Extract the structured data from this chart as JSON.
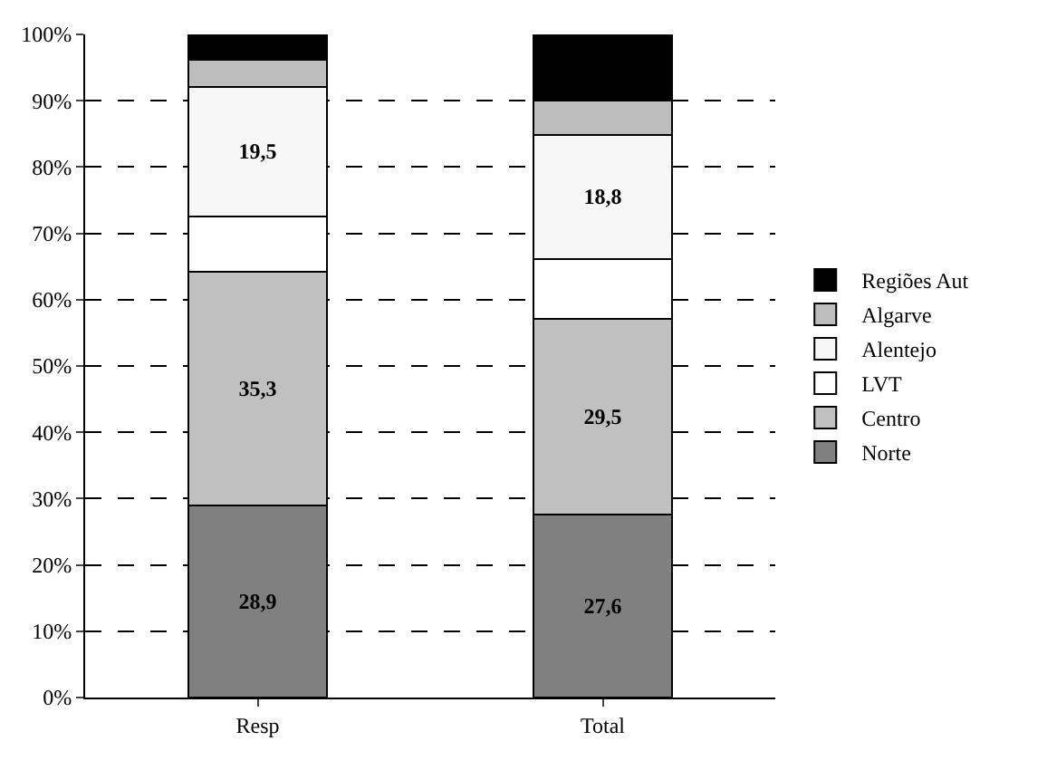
{
  "chart_data": {
    "type": "bar",
    "stacked": true,
    "categories": [
      "Resp",
      "Total"
    ],
    "series": [
      {
        "name": "Norte",
        "color": "#808080",
        "values": [
          28.9,
          27.6
        ],
        "value_labels": [
          "28,9",
          "27,6"
        ]
      },
      {
        "name": "Centro",
        "color": "#c0c0c0",
        "values": [
          35.3,
          29.5
        ],
        "value_labels": [
          "35,3",
          "29,5"
        ]
      },
      {
        "name": "LVT",
        "color": "#ffffff",
        "values": [
          8.4,
          9.0
        ],
        "value_labels": [
          null,
          null
        ]
      },
      {
        "name": "Alentejo",
        "color": "#f7f7f7",
        "values": [
          19.5,
          18.8
        ],
        "value_labels": [
          "19,5",
          "18,8"
        ]
      },
      {
        "name": "Algarve",
        "color": "#bdbdbd",
        "values": [
          4.1,
          5.1
        ],
        "value_labels": [
          null,
          null
        ]
      },
      {
        "name": "Regiões Aut",
        "color": "#000000",
        "values": [
          3.8,
          10.0
        ],
        "value_labels": [
          null,
          null
        ]
      }
    ],
    "ylim": [
      0,
      100
    ],
    "yticks": [
      {
        "value": 0,
        "label": "0%"
      },
      {
        "value": 10,
        "label": "10%"
      },
      {
        "value": 20,
        "label": "20%"
      },
      {
        "value": 30,
        "label": "30%"
      },
      {
        "value": 40,
        "label": "40%"
      },
      {
        "value": 50,
        "label": "50%"
      },
      {
        "value": 60,
        "label": "60%"
      },
      {
        "value": 70,
        "label": "70%"
      },
      {
        "value": 80,
        "label": "80%"
      },
      {
        "value": 90,
        "label": "90%"
      },
      {
        "value": 100,
        "label": "100%"
      }
    ],
    "grid": "y",
    "legend": "right"
  }
}
